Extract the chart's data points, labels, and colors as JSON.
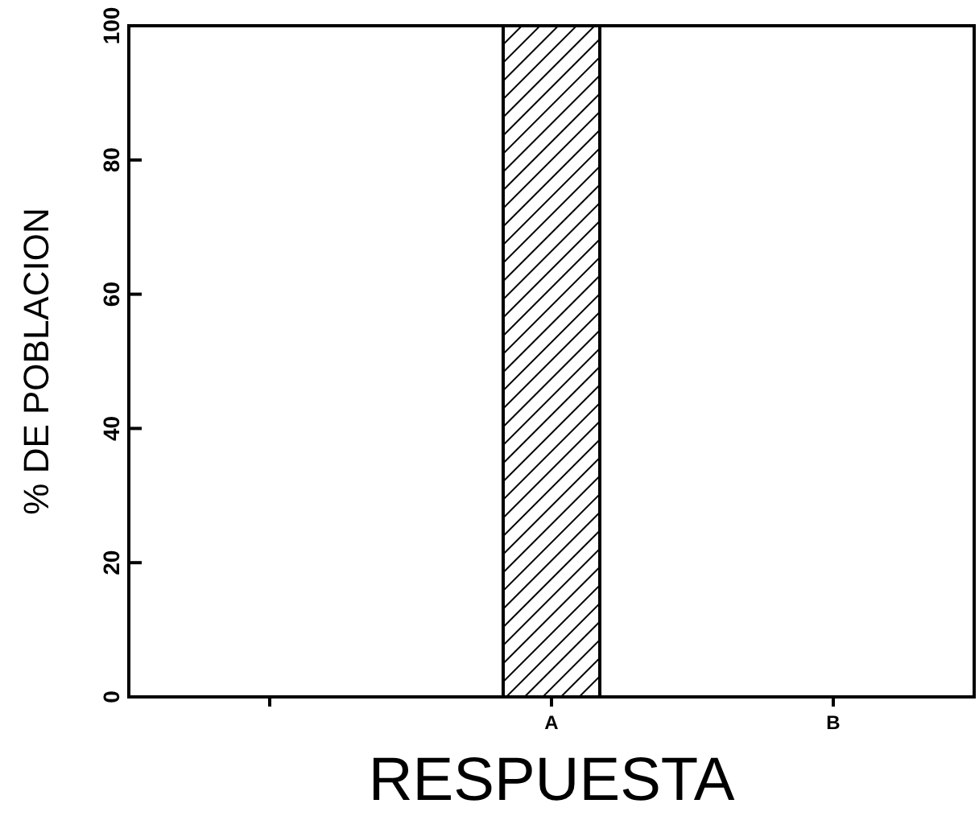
{
  "chart_data": {
    "type": "bar",
    "xlabel": "RESPUESTA",
    "ylabel": "% DE POBLACION",
    "categories": [
      null,
      "A",
      "B"
    ],
    "values": [
      null,
      100,
      0
    ],
    "color": "#000000",
    "ylim": [
      0,
      100
    ],
    "yticks": [
      0,
      20,
      40,
      60,
      80,
      100
    ],
    "grid": false
  }
}
